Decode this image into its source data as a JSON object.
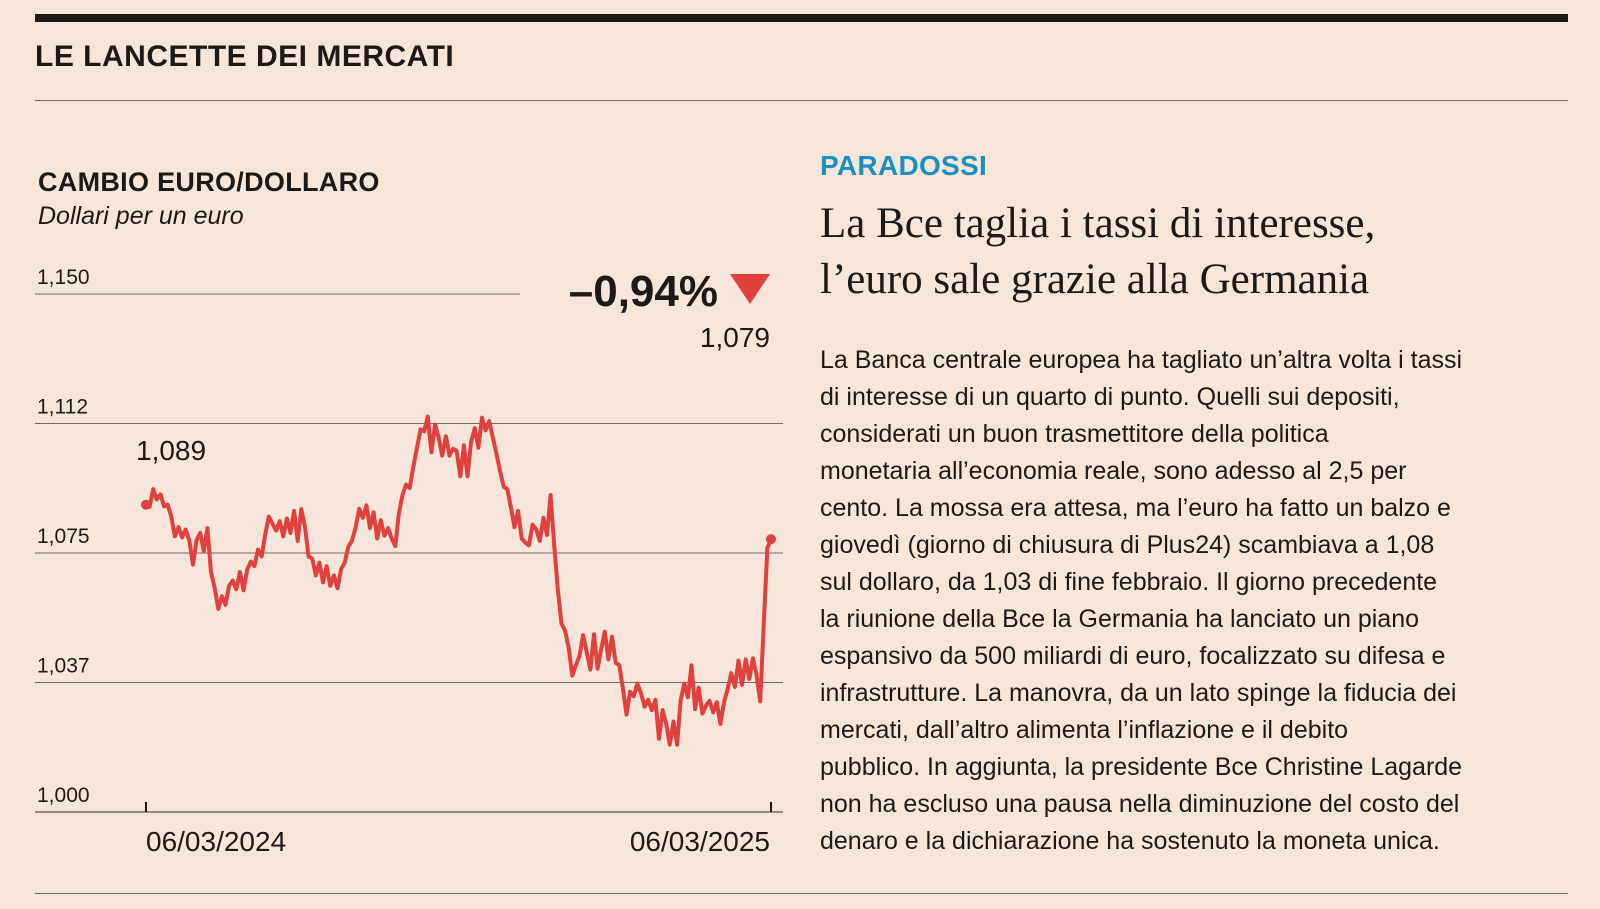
{
  "header": {
    "title": "LE LANCETTE DEI MERCATI"
  },
  "chart": {
    "title": "CAMBIO EURO/DOLLARO",
    "subtitle": "Dollari per un euro",
    "change_label": "–0,94%",
    "start_label": "1,089",
    "end_label": "1,079",
    "colors": {
      "line": "#e0403e",
      "grid": "#6f6a66",
      "text": "#1c1a19"
    }
  },
  "chart_data": {
    "type": "line",
    "title": "CAMBIO EURO/DOLLARO",
    "subtitle": "Dollari per un euro",
    "xlabel": "",
    "ylabel": "",
    "y_ticks": [
      "1,150",
      "1,112",
      "1,075",
      "1,037",
      "1,000"
    ],
    "y_tick_values": [
      1.15,
      1.1125,
      1.075,
      1.0375,
      1.0
    ],
    "ylim": [
      1.0,
      1.15
    ],
    "x_tick_labels": [
      "06/03/2024",
      "06/03/2025"
    ],
    "x_range": [
      "2024-03-06",
      "2025-03-06"
    ],
    "grid": true,
    "series": [
      {
        "values": [
          1.089,
          1.0884,
          1.0935,
          1.0905,
          1.092,
          1.0885,
          1.089,
          1.0855,
          1.0798,
          1.0825,
          1.0795,
          1.0818,
          1.0785,
          1.0716,
          1.0788,
          1.0808,
          1.0755,
          1.0822,
          1.0695,
          1.065,
          1.0588,
          1.0625,
          1.06,
          1.0655,
          1.067,
          1.0645,
          1.0695,
          1.0642,
          1.0702,
          1.0725,
          1.0712,
          1.076,
          1.074,
          1.0803,
          1.0855,
          1.0835,
          1.0815,
          1.0842,
          1.0798,
          1.085,
          1.0808,
          1.0872,
          1.0785,
          1.0877,
          1.0825,
          1.074,
          1.0734,
          1.0685,
          1.0722,
          1.0665,
          1.0712,
          1.0655,
          1.0685,
          1.0648,
          1.0703,
          1.0722,
          1.0768,
          1.0785,
          1.0822,
          1.0878,
          1.0852,
          1.0888,
          1.0822,
          1.0868,
          1.0792,
          1.0845,
          1.08,
          1.0822,
          1.0792,
          1.077,
          1.0865,
          1.0918,
          1.0948,
          1.0938,
          1.1,
          1.1055,
          1.1108,
          1.1102,
          1.1145,
          1.1042,
          1.1122,
          1.1085,
          1.1032,
          1.1088,
          1.1032,
          1.1052,
          1.1045,
          1.0972,
          1.1062,
          1.0972,
          1.1072,
          1.1112,
          1.1055,
          1.1142,
          1.1105,
          1.1132,
          1.1085,
          1.1038,
          1.0988,
          1.0942,
          1.0935,
          1.0882,
          1.0825,
          1.0872,
          1.0792,
          1.078,
          1.0772,
          1.0832,
          1.0818,
          1.0785,
          1.0852,
          1.0802,
          1.0918,
          1.0772,
          1.0645,
          1.0545,
          1.0525,
          1.0475,
          1.0395,
          1.0425,
          1.0452,
          1.0512,
          1.0462,
          1.0412,
          1.0515,
          1.0415,
          1.0472,
          1.0522,
          1.0442,
          1.0508,
          1.0432,
          1.0425,
          1.0358,
          1.0282,
          1.0348,
          1.0335,
          1.0372,
          1.0345,
          1.0305,
          1.0325,
          1.0295,
          1.0325,
          1.0212,
          1.0295,
          1.0255,
          1.0195,
          1.0262,
          1.0195,
          1.0325,
          1.0372,
          1.0332,
          1.0425,
          1.0298,
          1.036,
          1.0285,
          1.0308,
          1.0322,
          1.0288,
          1.0318,
          1.0255,
          1.0318,
          1.0355,
          1.0402,
          1.0362,
          1.0438,
          1.0368,
          1.0442,
          1.0385,
          1.0445,
          1.0398,
          1.032,
          1.0548,
          1.0765,
          1.079
        ]
      }
    ]
  },
  "article": {
    "kicker": "PARADOSSI",
    "headline_line1": "La Bce taglia i tassi di interesse,",
    "headline_line2": "l’euro sale grazie alla Germania",
    "body": [
      "La Banca centrale europea ha tagliato un’altra volta i tassi",
      "di interesse di un quarto di punto. Quelli sui depositi,",
      "considerati un buon trasmettitore della politica",
      "monetaria all’economia reale, sono adesso al 2,5 per",
      "cento. La mossa era attesa, ma l’euro ha fatto un balzo e",
      "giovedì (giorno di chiusura di Plus24) scambiava a 1,08",
      "sul dollaro, da 1,03 di fine febbraio. Il giorno precedente",
      "la riunione della Bce la Germania ha lanciato un piano",
      "espansivo da 500 miliardi di euro, focalizzato su difesa e",
      "infrastrutture. La manovra, da un lato spinge la fiducia dei",
      "mercati, dall’altro alimenta l’inflazione e il debito",
      "pubblico. In aggiunta, la presidente Bce Christine Lagarde",
      "non ha escluso una pausa nella diminuzione del costo del",
      "denaro e la dichiarazione ha sostenuto la moneta unica."
    ]
  }
}
